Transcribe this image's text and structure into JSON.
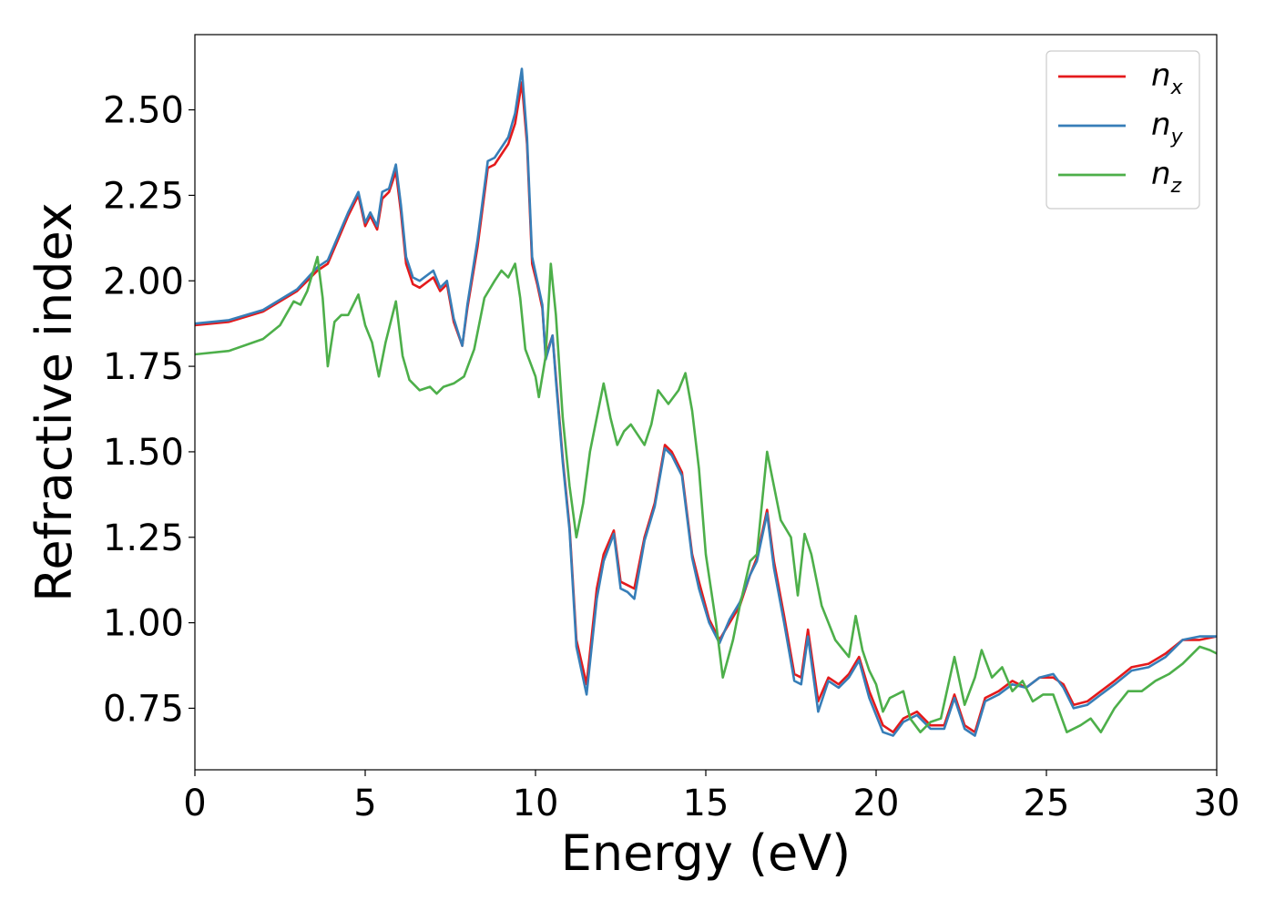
{
  "chart_data": {
    "type": "line",
    "xlabel": "Energy (eV)",
    "ylabel": "Refractive index",
    "xlim": [
      0,
      30
    ],
    "ylim": [
      0.57,
      2.72
    ],
    "x_ticks": [
      0,
      5,
      10,
      15,
      20,
      25,
      30
    ],
    "x_tick_labels": [
      "0",
      "5",
      "10",
      "15",
      "20",
      "25",
      "30"
    ],
    "y_ticks": [
      0.75,
      1.0,
      1.25,
      1.5,
      1.75,
      2.0,
      2.25,
      2.5
    ],
    "y_tick_labels": [
      "0.75",
      "1.00",
      "1.25",
      "1.50",
      "1.75",
      "2.00",
      "2.25",
      "2.50"
    ],
    "grid": false,
    "legend_position": "top-right",
    "series": [
      {
        "name": "n_x",
        "legend_base": "n",
        "legend_sub": "x",
        "color": "#e41a1c",
        "points": [
          [
            0,
            1.87
          ],
          [
            1,
            1.88
          ],
          [
            2,
            1.91
          ],
          [
            3,
            1.97
          ],
          [
            3.6,
            2.03
          ],
          [
            3.9,
            2.05
          ],
          [
            4.2,
            2.12
          ],
          [
            4.5,
            2.19
          ],
          [
            4.8,
            2.25
          ],
          [
            5.0,
            2.16
          ],
          [
            5.15,
            2.19
          ],
          [
            5.35,
            2.15
          ],
          [
            5.5,
            2.24
          ],
          [
            5.7,
            2.26
          ],
          [
            5.9,
            2.32
          ],
          [
            6.05,
            2.2
          ],
          [
            6.2,
            2.05
          ],
          [
            6.4,
            1.99
          ],
          [
            6.6,
            1.98
          ],
          [
            7.0,
            2.01
          ],
          [
            7.2,
            1.97
          ],
          [
            7.4,
            1.99
          ],
          [
            7.6,
            1.88
          ],
          [
            7.85,
            1.81
          ],
          [
            8.0,
            1.92
          ],
          [
            8.3,
            2.1
          ],
          [
            8.6,
            2.33
          ],
          [
            8.8,
            2.34
          ],
          [
            9.0,
            2.37
          ],
          [
            9.2,
            2.4
          ],
          [
            9.4,
            2.46
          ],
          [
            9.6,
            2.58
          ],
          [
            9.75,
            2.4
          ],
          [
            9.9,
            2.05
          ],
          [
            10.05,
            1.99
          ],
          [
            10.2,
            1.92
          ],
          [
            10.3,
            1.78
          ],
          [
            10.5,
            1.84
          ],
          [
            10.6,
            1.72
          ],
          [
            10.8,
            1.48
          ],
          [
            11.0,
            1.28
          ],
          [
            11.2,
            0.95
          ],
          [
            11.5,
            0.82
          ],
          [
            11.8,
            1.1
          ],
          [
            12.0,
            1.2
          ],
          [
            12.3,
            1.27
          ],
          [
            12.5,
            1.12
          ],
          [
            12.7,
            1.11
          ],
          [
            12.9,
            1.1
          ],
          [
            13.2,
            1.25
          ],
          [
            13.5,
            1.35
          ],
          [
            13.8,
            1.52
          ],
          [
            14.0,
            1.5
          ],
          [
            14.3,
            1.44
          ],
          [
            14.6,
            1.2
          ],
          [
            14.8,
            1.12
          ],
          [
            15.1,
            1.01
          ],
          [
            15.4,
            0.95
          ],
          [
            15.7,
            1.0
          ],
          [
            16.0,
            1.05
          ],
          [
            16.3,
            1.14
          ],
          [
            16.5,
            1.19
          ],
          [
            16.8,
            1.33
          ],
          [
            17.0,
            1.18
          ],
          [
            17.3,
            1.02
          ],
          [
            17.6,
            0.85
          ],
          [
            17.8,
            0.84
          ],
          [
            18.0,
            0.98
          ],
          [
            18.3,
            0.77
          ],
          [
            18.6,
            0.84
          ],
          [
            18.9,
            0.82
          ],
          [
            19.2,
            0.85
          ],
          [
            19.5,
            0.9
          ],
          [
            19.8,
            0.8
          ],
          [
            20.2,
            0.7
          ],
          [
            20.5,
            0.68
          ],
          [
            20.8,
            0.72
          ],
          [
            21.2,
            0.74
          ],
          [
            21.6,
            0.7
          ],
          [
            22.0,
            0.7
          ],
          [
            22.3,
            0.79
          ],
          [
            22.6,
            0.7
          ],
          [
            22.9,
            0.68
          ],
          [
            23.2,
            0.78
          ],
          [
            23.6,
            0.8
          ],
          [
            24.0,
            0.83
          ],
          [
            24.4,
            0.81
          ],
          [
            24.8,
            0.84
          ],
          [
            25.2,
            0.84
          ],
          [
            25.5,
            0.82
          ],
          [
            25.8,
            0.76
          ],
          [
            26.2,
            0.77
          ],
          [
            26.6,
            0.8
          ],
          [
            27.0,
            0.83
          ],
          [
            27.5,
            0.87
          ],
          [
            28.0,
            0.88
          ],
          [
            28.5,
            0.91
          ],
          [
            29.0,
            0.95
          ],
          [
            29.5,
            0.95
          ],
          [
            30.0,
            0.96
          ]
        ]
      },
      {
        "name": "n_y",
        "legend_base": "n",
        "legend_sub": "y",
        "color": "#377eb8",
        "points": [
          [
            0,
            1.875
          ],
          [
            1,
            1.885
          ],
          [
            2,
            1.915
          ],
          [
            3,
            1.975
          ],
          [
            3.6,
            2.04
          ],
          [
            3.9,
            2.06
          ],
          [
            4.2,
            2.13
          ],
          [
            4.5,
            2.2
          ],
          [
            4.8,
            2.26
          ],
          [
            5.0,
            2.17
          ],
          [
            5.15,
            2.2
          ],
          [
            5.35,
            2.16
          ],
          [
            5.5,
            2.26
          ],
          [
            5.7,
            2.27
          ],
          [
            5.9,
            2.34
          ],
          [
            6.05,
            2.22
          ],
          [
            6.2,
            2.07
          ],
          [
            6.4,
            2.01
          ],
          [
            6.6,
            2.0
          ],
          [
            7.0,
            2.03
          ],
          [
            7.2,
            1.98
          ],
          [
            7.4,
            2.0
          ],
          [
            7.6,
            1.89
          ],
          [
            7.85,
            1.81
          ],
          [
            8.0,
            1.93
          ],
          [
            8.3,
            2.12
          ],
          [
            8.6,
            2.35
          ],
          [
            8.8,
            2.36
          ],
          [
            9.0,
            2.39
          ],
          [
            9.2,
            2.42
          ],
          [
            9.4,
            2.49
          ],
          [
            9.6,
            2.62
          ],
          [
            9.75,
            2.42
          ],
          [
            9.9,
            2.07
          ],
          [
            10.05,
            2.0
          ],
          [
            10.2,
            1.93
          ],
          [
            10.3,
            1.77
          ],
          [
            10.5,
            1.84
          ],
          [
            10.6,
            1.71
          ],
          [
            10.8,
            1.47
          ],
          [
            11.0,
            1.27
          ],
          [
            11.2,
            0.93
          ],
          [
            11.5,
            0.79
          ],
          [
            11.8,
            1.07
          ],
          [
            12.0,
            1.18
          ],
          [
            12.3,
            1.26
          ],
          [
            12.5,
            1.1
          ],
          [
            12.7,
            1.09
          ],
          [
            12.9,
            1.07
          ],
          [
            13.2,
            1.24
          ],
          [
            13.5,
            1.34
          ],
          [
            13.8,
            1.51
          ],
          [
            14.0,
            1.49
          ],
          [
            14.3,
            1.43
          ],
          [
            14.6,
            1.19
          ],
          [
            14.8,
            1.1
          ],
          [
            15.1,
            1.0
          ],
          [
            15.4,
            0.94
          ],
          [
            15.7,
            1.01
          ],
          [
            16.0,
            1.06
          ],
          [
            16.3,
            1.14
          ],
          [
            16.5,
            1.18
          ],
          [
            16.8,
            1.32
          ],
          [
            17.0,
            1.16
          ],
          [
            17.3,
            1.0
          ],
          [
            17.6,
            0.83
          ],
          [
            17.8,
            0.82
          ],
          [
            18.0,
            0.96
          ],
          [
            18.3,
            0.74
          ],
          [
            18.6,
            0.83
          ],
          [
            18.9,
            0.81
          ],
          [
            19.2,
            0.84
          ],
          [
            19.5,
            0.89
          ],
          [
            19.8,
            0.78
          ],
          [
            20.2,
            0.68
          ],
          [
            20.5,
            0.67
          ],
          [
            20.8,
            0.71
          ],
          [
            21.2,
            0.73
          ],
          [
            21.6,
            0.69
          ],
          [
            22.0,
            0.69
          ],
          [
            22.3,
            0.78
          ],
          [
            22.6,
            0.69
          ],
          [
            22.9,
            0.67
          ],
          [
            23.2,
            0.77
          ],
          [
            23.6,
            0.79
          ],
          [
            24.0,
            0.82
          ],
          [
            24.4,
            0.81
          ],
          [
            24.8,
            0.84
          ],
          [
            25.2,
            0.85
          ],
          [
            25.5,
            0.81
          ],
          [
            25.8,
            0.75
          ],
          [
            26.2,
            0.76
          ],
          [
            26.6,
            0.79
          ],
          [
            27.0,
            0.82
          ],
          [
            27.5,
            0.86
          ],
          [
            28.0,
            0.87
          ],
          [
            28.5,
            0.9
          ],
          [
            29.0,
            0.95
          ],
          [
            29.5,
            0.96
          ],
          [
            30.0,
            0.96
          ]
        ]
      },
      {
        "name": "n_z",
        "legend_base": "n",
        "legend_sub": "z",
        "color": "#4daf4a",
        "points": [
          [
            0,
            1.785
          ],
          [
            1,
            1.795
          ],
          [
            2,
            1.83
          ],
          [
            2.5,
            1.87
          ],
          [
            2.9,
            1.94
          ],
          [
            3.1,
            1.93
          ],
          [
            3.3,
            1.97
          ],
          [
            3.6,
            2.07
          ],
          [
            3.75,
            1.95
          ],
          [
            3.9,
            1.75
          ],
          [
            4.1,
            1.88
          ],
          [
            4.3,
            1.9
          ],
          [
            4.5,
            1.9
          ],
          [
            4.8,
            1.96
          ],
          [
            5.0,
            1.87
          ],
          [
            5.2,
            1.82
          ],
          [
            5.4,
            1.72
          ],
          [
            5.6,
            1.82
          ],
          [
            5.9,
            1.94
          ],
          [
            6.1,
            1.78
          ],
          [
            6.3,
            1.71
          ],
          [
            6.6,
            1.68
          ],
          [
            6.9,
            1.69
          ],
          [
            7.1,
            1.67
          ],
          [
            7.3,
            1.69
          ],
          [
            7.6,
            1.7
          ],
          [
            7.9,
            1.72
          ],
          [
            8.2,
            1.8
          ],
          [
            8.5,
            1.95
          ],
          [
            8.8,
            2.0
          ],
          [
            9.0,
            2.03
          ],
          [
            9.2,
            2.01
          ],
          [
            9.4,
            2.05
          ],
          [
            9.55,
            1.95
          ],
          [
            9.7,
            1.8
          ],
          [
            10.0,
            1.72
          ],
          [
            10.1,
            1.66
          ],
          [
            10.3,
            1.78
          ],
          [
            10.45,
            2.05
          ],
          [
            10.6,
            1.9
          ],
          [
            10.8,
            1.6
          ],
          [
            11.0,
            1.4
          ],
          [
            11.2,
            1.25
          ],
          [
            11.4,
            1.35
          ],
          [
            11.6,
            1.5
          ],
          [
            11.8,
            1.6
          ],
          [
            12.0,
            1.7
          ],
          [
            12.2,
            1.6
          ],
          [
            12.4,
            1.52
          ],
          [
            12.6,
            1.56
          ],
          [
            12.8,
            1.58
          ],
          [
            13.0,
            1.55
          ],
          [
            13.2,
            1.52
          ],
          [
            13.4,
            1.58
          ],
          [
            13.6,
            1.68
          ],
          [
            13.9,
            1.64
          ],
          [
            14.2,
            1.68
          ],
          [
            14.4,
            1.73
          ],
          [
            14.6,
            1.62
          ],
          [
            14.8,
            1.45
          ],
          [
            15.0,
            1.2
          ],
          [
            15.3,
            1.0
          ],
          [
            15.5,
            0.84
          ],
          [
            15.8,
            0.95
          ],
          [
            16.0,
            1.05
          ],
          [
            16.3,
            1.18
          ],
          [
            16.5,
            1.2
          ],
          [
            16.8,
            1.5
          ],
          [
            17.0,
            1.4
          ],
          [
            17.2,
            1.3
          ],
          [
            17.5,
            1.25
          ],
          [
            17.7,
            1.08
          ],
          [
            17.9,
            1.26
          ],
          [
            18.1,
            1.2
          ],
          [
            18.4,
            1.05
          ],
          [
            18.8,
            0.95
          ],
          [
            19.2,
            0.9
          ],
          [
            19.4,
            1.02
          ],
          [
            19.6,
            0.92
          ],
          [
            19.8,
            0.86
          ],
          [
            20.0,
            0.82
          ],
          [
            20.2,
            0.74
          ],
          [
            20.4,
            0.78
          ],
          [
            20.8,
            0.8
          ],
          [
            21.0,
            0.72
          ],
          [
            21.3,
            0.68
          ],
          [
            21.6,
            0.71
          ],
          [
            21.9,
            0.72
          ],
          [
            22.3,
            0.9
          ],
          [
            22.6,
            0.76
          ],
          [
            22.9,
            0.84
          ],
          [
            23.1,
            0.92
          ],
          [
            23.4,
            0.84
          ],
          [
            23.7,
            0.87
          ],
          [
            24.0,
            0.8
          ],
          [
            24.3,
            0.83
          ],
          [
            24.6,
            0.77
          ],
          [
            24.9,
            0.79
          ],
          [
            25.2,
            0.79
          ],
          [
            25.6,
            0.68
          ],
          [
            26.0,
            0.7
          ],
          [
            26.3,
            0.72
          ],
          [
            26.6,
            0.68
          ],
          [
            27.0,
            0.75
          ],
          [
            27.4,
            0.8
          ],
          [
            27.8,
            0.8
          ],
          [
            28.2,
            0.83
          ],
          [
            28.6,
            0.85
          ],
          [
            29.0,
            0.88
          ],
          [
            29.5,
            0.93
          ],
          [
            29.8,
            0.92
          ],
          [
            30.0,
            0.91
          ]
        ]
      }
    ]
  }
}
